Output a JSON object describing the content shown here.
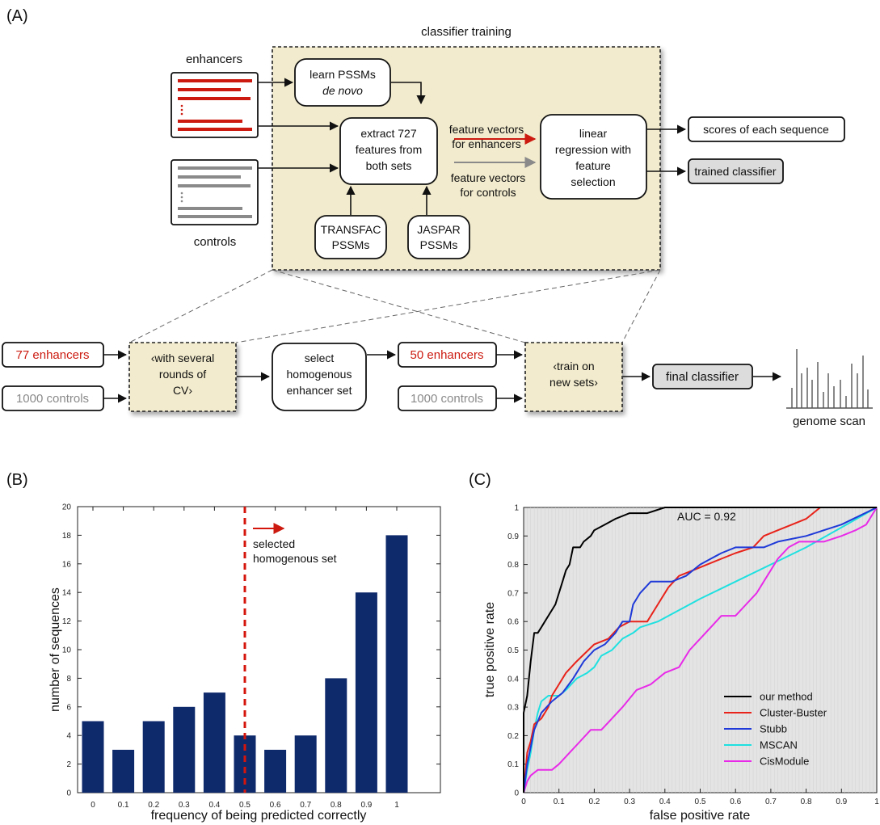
{
  "panels": {
    "a_label": "(A)",
    "b_label": "(B)",
    "c_label": "(C)"
  },
  "diagram": {
    "training_title": "classifier training",
    "enhancers_label": "enhancers",
    "controls_label": "controls",
    "learn_pssms_line1": "learn PSSMs",
    "learn_pssms_line2": "de novo",
    "extract_line1": "extract 727",
    "extract_line2": "features from",
    "extract_line3": "both sets",
    "fv_enh_line1": "feature vectors",
    "fv_enh_line2": "for enhancers",
    "fv_ctrl_line1": "feature vectors",
    "fv_ctrl_line2": "for controls",
    "lin_line1": "linear",
    "lin_line2": "regression with",
    "lin_line3": "feature",
    "lin_line4": "selection",
    "scores": "scores of each sequence",
    "trained": "trained classifier",
    "transfac_line1": "TRANSFAC",
    "transfac_line2": "PSSMs",
    "jaspar_line1": "JASPAR",
    "jaspar_line2": "PSSMs",
    "enh77": "77 enhancers",
    "ctrl1000a": "1000 controls",
    "cv_line1": "‹with several",
    "cv_line2": "rounds of",
    "cv_line3": "CV›",
    "select_line1": "select",
    "select_line2": "homogenous",
    "select_line3": "enhancer set",
    "enh50": "50 enhancers",
    "ctrl1000b": "1000 controls",
    "trainnew_line1": "‹train on",
    "trainnew_line2": "new sets›",
    "final": "final classifier",
    "genome_scan": "genome scan",
    "colors": {
      "red": "#cc1a10",
      "gray": "#8a8a8a",
      "beige": "#f2ebcd"
    }
  },
  "chart_data": [
    {
      "type": "bar",
      "panel": "B",
      "categories": [
        "0",
        "0.1",
        "0.2",
        "0.3",
        "0.4",
        "0.5",
        "0.6",
        "0.7",
        "0.8",
        "0.9",
        "1"
      ],
      "values": [
        5,
        3,
        5,
        6,
        7,
        4,
        3,
        4,
        8,
        14,
        18
      ],
      "xlabel": "frequency of being predicted correctly",
      "ylabel": "number of sequences",
      "ylim": [
        0,
        20
      ],
      "yticks": [
        "0",
        "2",
        "4",
        "6",
        "8",
        "10",
        "12",
        "14",
        "16",
        "18",
        "20"
      ],
      "threshold_x": 0.5,
      "annotation_line1": "selected",
      "annotation_line2": "homogenous set",
      "bar_color": "#0f2a6b",
      "threshold_color": "#d4150c"
    },
    {
      "type": "line",
      "panel": "C",
      "xlabel": "false positive rate",
      "ylabel": "true positive rate",
      "xlim": [
        0,
        1
      ],
      "ylim": [
        0,
        1
      ],
      "ticks": [
        "0",
        "0.1",
        "0.2",
        "0.3",
        "0.4",
        "0.5",
        "0.6",
        "0.7",
        "0.8",
        "0.9",
        "1"
      ],
      "annotation": "AUC = 0.92",
      "background": "#e4e4e4",
      "legend_position": "lower-right",
      "series": [
        {
          "name": "our method",
          "color": "#000000",
          "points": [
            [
              0,
              0
            ],
            [
              0,
              0.28
            ],
            [
              0.01,
              0.34
            ],
            [
              0.02,
              0.46
            ],
            [
              0.03,
              0.56
            ],
            [
              0.04,
              0.56
            ],
            [
              0.05,
              0.58
            ],
            [
              0.07,
              0.62
            ],
            [
              0.09,
              0.66
            ],
            [
              0.1,
              0.7
            ],
            [
              0.11,
              0.74
            ],
            [
              0.12,
              0.78
            ],
            [
              0.13,
              0.8
            ],
            [
              0.14,
              0.86
            ],
            [
              0.16,
              0.86
            ],
            [
              0.17,
              0.88
            ],
            [
              0.19,
              0.9
            ],
            [
              0.2,
              0.92
            ],
            [
              0.23,
              0.94
            ],
            [
              0.26,
              0.96
            ],
            [
              0.3,
              0.98
            ],
            [
              0.35,
              0.98
            ],
            [
              0.4,
              1.0
            ],
            [
              1,
              1.0
            ]
          ]
        },
        {
          "name": "Cluster-Buster",
          "color": "#e8231a",
          "points": [
            [
              0,
              0
            ],
            [
              0.01,
              0.14
            ],
            [
              0.02,
              0.18
            ],
            [
              0.03,
              0.24
            ],
            [
              0.05,
              0.26
            ],
            [
              0.07,
              0.3
            ],
            [
              0.08,
              0.34
            ],
            [
              0.1,
              0.38
            ],
            [
              0.12,
              0.42
            ],
            [
              0.15,
              0.46
            ],
            [
              0.2,
              0.52
            ],
            [
              0.24,
              0.54
            ],
            [
              0.27,
              0.58
            ],
            [
              0.3,
              0.6
            ],
            [
              0.35,
              0.6
            ],
            [
              0.38,
              0.66
            ],
            [
              0.41,
              0.72
            ],
            [
              0.44,
              0.76
            ],
            [
              0.48,
              0.78
            ],
            [
              0.52,
              0.8
            ],
            [
              0.56,
              0.82
            ],
            [
              0.6,
              0.84
            ],
            [
              0.65,
              0.86
            ],
            [
              0.68,
              0.9
            ],
            [
              0.72,
              0.92
            ],
            [
              0.76,
              0.94
            ],
            [
              0.8,
              0.96
            ],
            [
              0.84,
              1.0
            ],
            [
              1,
              1.0
            ]
          ]
        },
        {
          "name": "Stubb",
          "color": "#1f3ad8",
          "points": [
            [
              0,
              0
            ],
            [
              0.01,
              0.1
            ],
            [
              0.03,
              0.22
            ],
            [
              0.05,
              0.28
            ],
            [
              0.08,
              0.32
            ],
            [
              0.11,
              0.35
            ],
            [
              0.14,
              0.4
            ],
            [
              0.17,
              0.46
            ],
            [
              0.2,
              0.5
            ],
            [
              0.23,
              0.52
            ],
            [
              0.26,
              0.56
            ],
            [
              0.28,
              0.6
            ],
            [
              0.3,
              0.6
            ],
            [
              0.31,
              0.66
            ],
            [
              0.33,
              0.7
            ],
            [
              0.36,
              0.74
            ],
            [
              0.42,
              0.74
            ],
            [
              0.46,
              0.76
            ],
            [
              0.5,
              0.8
            ],
            [
              0.53,
              0.82
            ],
            [
              0.56,
              0.84
            ],
            [
              0.6,
              0.86
            ],
            [
              0.68,
              0.86
            ],
            [
              0.72,
              0.88
            ],
            [
              0.8,
              0.9
            ],
            [
              0.9,
              0.94
            ],
            [
              1,
              1.0
            ]
          ]
        },
        {
          "name": "MSCAN",
          "color": "#1fe0e0",
          "points": [
            [
              0,
              0
            ],
            [
              0.01,
              0.08
            ],
            [
              0.02,
              0.14
            ],
            [
              0.03,
              0.22
            ],
            [
              0.04,
              0.28
            ],
            [
              0.05,
              0.32
            ],
            [
              0.07,
              0.34
            ],
            [
              0.1,
              0.34
            ],
            [
              0.12,
              0.36
            ],
            [
              0.15,
              0.4
            ],
            [
              0.18,
              0.42
            ],
            [
              0.2,
              0.44
            ],
            [
              0.22,
              0.48
            ],
            [
              0.25,
              0.5
            ],
            [
              0.28,
              0.54
            ],
            [
              0.31,
              0.56
            ],
            [
              0.33,
              0.58
            ],
            [
              0.38,
              0.6
            ],
            [
              0.44,
              0.64
            ],
            [
              0.5,
              0.68
            ],
            [
              0.6,
              0.74
            ],
            [
              0.7,
              0.8
            ],
            [
              0.8,
              0.86
            ],
            [
              0.9,
              0.93
            ],
            [
              1,
              1.0
            ]
          ]
        },
        {
          "name": "CisModule",
          "color": "#e82ae8",
          "points": [
            [
              0,
              0
            ],
            [
              0.01,
              0.04
            ],
            [
              0.02,
              0.06
            ],
            [
              0.04,
              0.08
            ],
            [
              0.08,
              0.08
            ],
            [
              0.1,
              0.1
            ],
            [
              0.13,
              0.14
            ],
            [
              0.16,
              0.18
            ],
            [
              0.19,
              0.22
            ],
            [
              0.22,
              0.22
            ],
            [
              0.25,
              0.26
            ],
            [
              0.28,
              0.3
            ],
            [
              0.32,
              0.36
            ],
            [
              0.36,
              0.38
            ],
            [
              0.4,
              0.42
            ],
            [
              0.44,
              0.44
            ],
            [
              0.47,
              0.5
            ],
            [
              0.5,
              0.54
            ],
            [
              0.53,
              0.58
            ],
            [
              0.56,
              0.62
            ],
            [
              0.6,
              0.62
            ],
            [
              0.63,
              0.66
            ],
            [
              0.66,
              0.7
            ],
            [
              0.69,
              0.76
            ],
            [
              0.72,
              0.82
            ],
            [
              0.75,
              0.86
            ],
            [
              0.78,
              0.88
            ],
            [
              0.85,
              0.88
            ],
            [
              0.9,
              0.9
            ],
            [
              0.94,
              0.92
            ],
            [
              0.97,
              0.94
            ],
            [
              1,
              1.0
            ]
          ]
        }
      ]
    }
  ]
}
